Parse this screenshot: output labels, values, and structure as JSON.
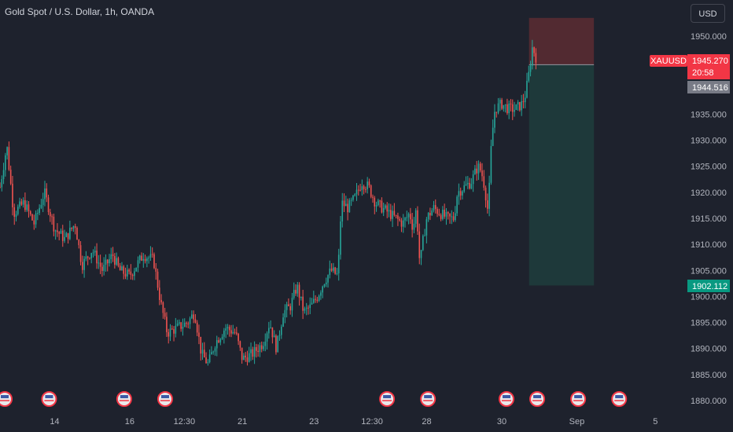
{
  "header": {
    "title": "Gold Spot / U.S. Dollar, 1h, OANDA",
    "currency": "USD"
  },
  "colors": {
    "background": "#1e222d",
    "up": "#26a69a",
    "down": "#ef5350",
    "stop_zone": "#5c2b33",
    "target_zone": "#1f3b3b",
    "symbol_badge": "#f23645",
    "entry_badge": "#787b86",
    "target_badge": "#089981"
  },
  "chart_data": {
    "type": "candlestick",
    "symbol": "XAUUSD",
    "ylim": [
      1878,
      1954
    ],
    "y_ticks": [
      "1950.000",
      "1945.000",
      "1940.000",
      "1935.000",
      "1930.000",
      "1925.000",
      "1920.000",
      "1915.000",
      "1910.000",
      "1905.000",
      "1900.000",
      "1895.000",
      "1890.000",
      "1885.000",
      "1880.000"
    ],
    "y_tick_values": [
      1950,
      1945,
      1940,
      1935,
      1930,
      1925,
      1920,
      1915,
      1910,
      1905,
      1900,
      1895,
      1890,
      1885,
      1880
    ],
    "x_ticks": [
      {
        "label": "14",
        "t": 0.08
      },
      {
        "label": "16",
        "t": 0.19
      },
      {
        "label": "12:30",
        "t": 0.27
      },
      {
        "label": "21",
        "t": 0.355
      },
      {
        "label": "23",
        "t": 0.46
      },
      {
        "label": "12:30",
        "t": 0.545
      },
      {
        "label": "28",
        "t": 0.625
      },
      {
        "label": "30",
        "t": 0.735
      },
      {
        "label": "Sep",
        "t": 0.845
      },
      {
        "label": "5",
        "t": 0.96
      }
    ],
    "price_path": [
      [
        0.0,
        1921
      ],
      [
        0.01,
        1929
      ],
      [
        0.02,
        1916
      ],
      [
        0.035,
        1918
      ],
      [
        0.05,
        1914
      ],
      [
        0.065,
        1920
      ],
      [
        0.08,
        1913
      ],
      [
        0.095,
        1911
      ],
      [
        0.11,
        1914
      ],
      [
        0.12,
        1906
      ],
      [
        0.135,
        1909
      ],
      [
        0.15,
        1905
      ],
      [
        0.165,
        1908
      ],
      [
        0.175,
        1905
      ],
      [
        0.19,
        1904
      ],
      [
        0.2,
        1906
      ],
      [
        0.21,
        1908
      ],
      [
        0.225,
        1907
      ],
      [
        0.235,
        1899
      ],
      [
        0.245,
        1893
      ],
      [
        0.26,
        1894
      ],
      [
        0.275,
        1895
      ],
      [
        0.285,
        1897
      ],
      [
        0.295,
        1889
      ],
      [
        0.305,
        1887
      ],
      [
        0.315,
        1891
      ],
      [
        0.33,
        1894
      ],
      [
        0.345,
        1893
      ],
      [
        0.355,
        1888
      ],
      [
        0.37,
        1889
      ],
      [
        0.385,
        1891
      ],
      [
        0.395,
        1895
      ],
      [
        0.405,
        1890
      ],
      [
        0.415,
        1897
      ],
      [
        0.425,
        1898
      ],
      [
        0.435,
        1902
      ],
      [
        0.445,
        1897
      ],
      [
        0.455,
        1898
      ],
      [
        0.465,
        1900
      ],
      [
        0.475,
        1903
      ],
      [
        0.485,
        1905
      ],
      [
        0.495,
        1904
      ],
      [
        0.5,
        1918
      ],
      [
        0.51,
        1917
      ],
      [
        0.52,
        1919
      ],
      [
        0.53,
        1922
      ],
      [
        0.54,
        1921
      ],
      [
        0.55,
        1918
      ],
      [
        0.56,
        1917
      ],
      [
        0.57,
        1916
      ],
      [
        0.58,
        1915
      ],
      [
        0.59,
        1914
      ],
      [
        0.6,
        1916
      ],
      [
        0.605,
        1913
      ],
      [
        0.61,
        1917
      ],
      [
        0.615,
        1906
      ],
      [
        0.62,
        1911
      ],
      [
        0.625,
        1915
      ],
      [
        0.635,
        1917
      ],
      [
        0.645,
        1916
      ],
      [
        0.655,
        1915
      ],
      [
        0.665,
        1915
      ],
      [
        0.67,
        1920
      ],
      [
        0.68,
        1921
      ],
      [
        0.69,
        1922
      ],
      [
        0.7,
        1925
      ],
      [
        0.705,
        1924
      ],
      [
        0.71,
        1921
      ],
      [
        0.715,
        1916
      ],
      [
        0.72,
        1930
      ],
      [
        0.725,
        1936
      ],
      [
        0.735,
        1937
      ],
      [
        0.745,
        1936
      ],
      [
        0.755,
        1936
      ],
      [
        0.765,
        1937
      ],
      [
        0.77,
        1939
      ],
      [
        0.775,
        1943
      ],
      [
        0.78,
        1948
      ],
      [
        0.785,
        1946
      ]
    ],
    "position_tool": {
      "stop_top": 1953.5,
      "entry": 1944.516,
      "target": 1902.112,
      "x_start": 0.775,
      "x_end": 0.87
    },
    "price_labels": {
      "symbol": "XAUUSD",
      "last": "1945.270",
      "countdown": "20:58",
      "entry": "1944.516",
      "target": "1902.112"
    },
    "events": [
      0.0,
      0.065,
      0.175,
      0.235,
      0.56,
      0.62,
      0.735,
      0.78,
      0.84,
      0.9
    ]
  }
}
